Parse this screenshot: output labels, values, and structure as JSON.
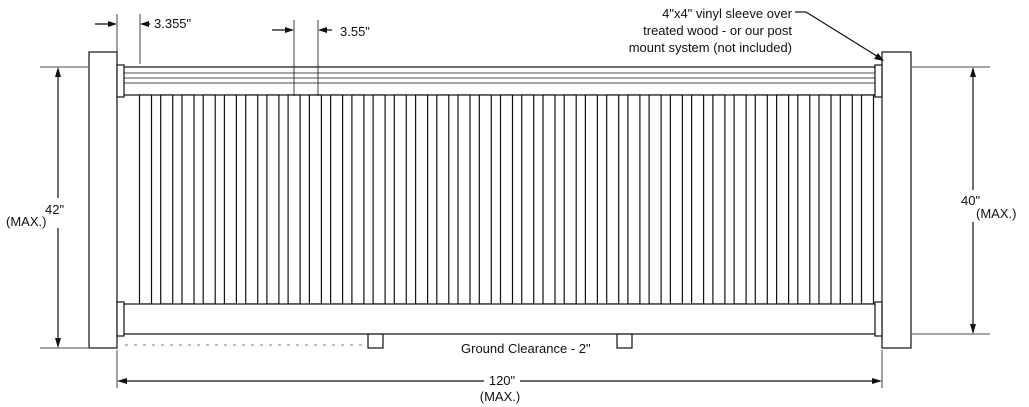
{
  "labels": {
    "baluster_width": "3.355\"",
    "baluster_spacing": "3.55\"",
    "post_note_line1": "4\"x4\" vinyl sleeve over",
    "post_note_line2": "treated wood - or our post",
    "post_note_line3": "mount system (not included)",
    "left_height_value": "42\"",
    "left_height_qualifier": "(MAX.)",
    "right_height_value": "40\"",
    "right_height_qualifier": "(MAX.)",
    "ground_clearance": "Ground Clearance - 2\"",
    "width_value": "120\"",
    "width_qualifier": "(MAX.)"
  },
  "railing": {
    "baluster_count": 35
  },
  "colors": {
    "line": "#111111",
    "background": "#ffffff"
  }
}
